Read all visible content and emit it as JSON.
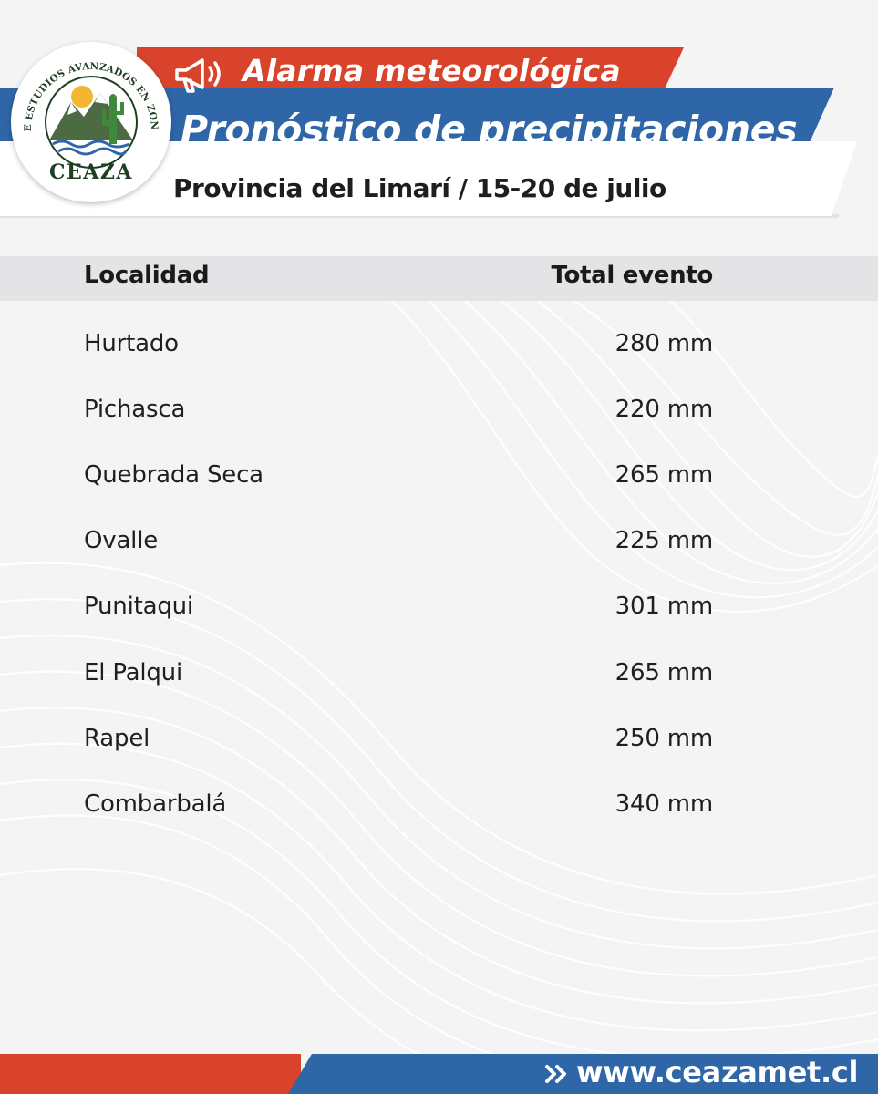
{
  "header": {
    "alarm_title": "Alarma meteorológica",
    "main_title": "Pronóstico de precipitaciones",
    "subtitle": "Provincia del Limarí / 15-20 de julio",
    "megaphone_icon": "megaphone-icon"
  },
  "logo": {
    "ring_text": "CENTRO DE ESTUDIOS AVANZADOS EN ZONAS ÁRIDAS",
    "name": "CEAZA"
  },
  "table": {
    "headers": {
      "location": "Localidad",
      "total": "Total evento"
    },
    "rows": [
      {
        "location": "Hurtado",
        "total": "280 mm"
      },
      {
        "location": "Pichasca",
        "total": "220 mm"
      },
      {
        "location": "Quebrada Seca",
        "total": "265 mm"
      },
      {
        "location": "Ovalle",
        "total": "225 mm"
      },
      {
        "location": "Punitaqui",
        "total": "301 mm"
      },
      {
        "location": "El Palqui",
        "total": "265 mm"
      },
      {
        "location": "Rapel",
        "total": "250 mm"
      },
      {
        "location": "Combarbalá",
        "total": "340 mm"
      }
    ]
  },
  "footer": {
    "url": "www.ceazamet.cl",
    "arrow_icon": "double-chevron-right-icon"
  },
  "colors": {
    "red": "#d9432b",
    "blue": "#2f66a8",
    "background": "#f4f4f5",
    "header_row": "#e4e4e6"
  }
}
